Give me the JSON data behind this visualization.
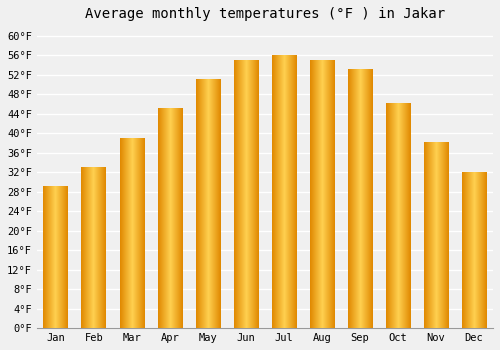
{
  "title": "Average monthly temperatures (°F ) in Jakar",
  "months": [
    "Jan",
    "Feb",
    "Mar",
    "Apr",
    "May",
    "Jun",
    "Jul",
    "Aug",
    "Sep",
    "Oct",
    "Nov",
    "Dec"
  ],
  "values": [
    29,
    33,
    39,
    45,
    51,
    55,
    56,
    55,
    53,
    46,
    38,
    32
  ],
  "bar_color_main": "#FFA500",
  "bar_color_light": "#FFD040",
  "bar_edge_color": "#E08000",
  "ylim": [
    0,
    62
  ],
  "yticks": [
    0,
    4,
    8,
    12,
    16,
    20,
    24,
    28,
    32,
    36,
    40,
    44,
    48,
    52,
    56,
    60
  ],
  "ytick_labels": [
    "0°F",
    "4°F",
    "8°F",
    "12°F",
    "16°F",
    "20°F",
    "24°F",
    "28°F",
    "32°F",
    "36°F",
    "40°F",
    "44°F",
    "48°F",
    "52°F",
    "56°F",
    "60°F"
  ],
  "background_color": "#f0f0f0",
  "grid_color": "#ffffff",
  "title_fontsize": 10,
  "tick_fontsize": 7.5,
  "font_family": "monospace"
}
